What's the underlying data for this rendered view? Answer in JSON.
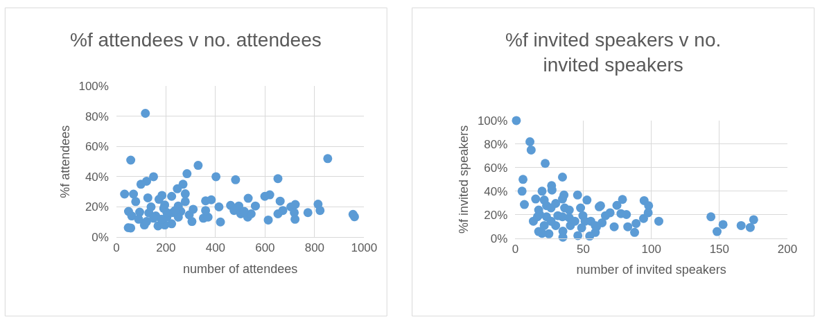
{
  "chart_data": [
    {
      "type": "scatter",
      "title": "%f attendees v no. attendees",
      "xlabel": "number of attendees",
      "ylabel": "%f attendees",
      "marker": "circle",
      "grid": true,
      "xlim": [
        0,
        1000
      ],
      "xticks": [
        0,
        200,
        400,
        600,
        800,
        1000
      ],
      "ylim": [
        0,
        100
      ],
      "yticks": [
        {
          "value": 0,
          "label": "0%"
        },
        {
          "value": 20,
          "label": "20%"
        },
        {
          "value": 40,
          "label": "40%"
        },
        {
          "value": 60,
          "label": "60%"
        },
        {
          "value": 80,
          "label": "80%"
        },
        {
          "value": 100,
          "label": "100%"
        }
      ],
      "series": [
        {
          "color": "#5b9bd5",
          "x": [
            117,
            58,
            853,
            330,
            285,
            402,
            481,
            652,
            150,
            122,
            99,
            269,
            246,
            33,
            69,
            78,
            127,
            184,
            223,
            278,
            278,
            360,
            383,
            414,
            461,
            494,
            532,
            561,
            599,
            619,
            661,
            722,
            704,
            814,
            822,
            773,
            955,
            961,
            613,
            721,
            718,
            652,
            672,
            420,
            305,
            294,
            310,
            351,
            370,
            360,
            475,
            502,
            530,
            544,
            516,
            49,
            62,
            58,
            48,
            113,
            94,
            90,
            131,
            140,
            172,
            195,
            191,
            168,
            195,
            223,
            204,
            182,
            159,
            227,
            250,
            260,
            250,
            237,
            204,
            150,
            122
          ],
          "values": [
            82,
            51,
            52,
            47.5,
            42,
            40,
            38,
            38.7,
            40,
            37,
            35,
            35,
            32,
            28.5,
            28.5,
            23.5,
            26,
            27.6,
            27,
            28.7,
            23.5,
            24,
            24.7,
            20,
            21,
            20.6,
            25.7,
            20.6,
            27,
            28,
            23.8,
            21.6,
            20,
            21.8,
            17.6,
            16.2,
            15,
            13.5,
            11.3,
            11.8,
            16.2,
            15.4,
            17.6,
            10,
            10.3,
            14.7,
            18.4,
            12.5,
            13.2,
            17.6,
            17.6,
            15.4,
            13.2,
            15.4,
            17,
            17,
            14,
            6,
            6.2,
            8,
            16.5,
            11.8,
            16,
            20,
            25,
            21.3,
            19,
            7.4,
            8,
            8.8,
            13.2,
            11.8,
            14,
            16.2,
            20.6,
            17,
            13.2,
            17.6,
            16.2,
            12.5,
            10.3
          ]
        }
      ]
    },
    {
      "type": "scatter",
      "title": "%f invited speakers v no. invited speakers",
      "xlabel": "number of invited speakers",
      "ylabel": "%f invited speakers",
      "marker": "circle",
      "grid": true,
      "xlim": [
        0,
        200
      ],
      "xticks": [
        0,
        50,
        100,
        150,
        200
      ],
      "ylim": [
        0,
        100
      ],
      "yticks": [
        {
          "value": 0,
          "label": "0%"
        },
        {
          "value": 20,
          "label": "20%"
        },
        {
          "value": 40,
          "label": "40%"
        },
        {
          "value": 60,
          "label": "60%"
        },
        {
          "value": 80,
          "label": "80%"
        },
        {
          "value": 100,
          "label": "100%"
        }
      ],
      "series": [
        {
          "color": "#5b9bd5",
          "x": [
            0.8,
            10.8,
            11.7,
            22,
            5.7,
            34.7,
            5,
            6.7,
            15,
            19.7,
            26.7,
            27,
            35.8,
            45.8,
            52.7,
            61.7,
            62.7,
            74.7,
            78.8,
            94.7,
            98,
            97.7,
            94.3,
            81.7,
            77.7,
            69.7,
            66.3,
            63.8,
            59.7,
            58.8,
            54.7,
            72.7,
            82.7,
            88.8,
            87.7,
            105.5,
            143.8,
            148.3,
            152.7,
            166,
            172.7,
            175.2,
            46,
            35,
            35,
            24.7,
            19.7,
            17.2,
            13.3,
            16.3,
            17.2,
            23,
            23,
            21.3,
            26.3,
            29.7,
            31.3,
            36.3,
            39.7,
            39.7,
            40.5,
            29.7,
            21.3,
            26.3,
            34.7,
            43.8,
            48,
            49.7,
            48.8,
            51.3,
            55.5,
            58.8,
            18,
            34.7
          ],
          "values": [
            100,
            82,
            75,
            63.6,
            50,
            52,
            40,
            28.7,
            33.4,
            40,
            44.7,
            41,
            36.8,
            36.8,
            32.5,
            26.8,
            27.7,
            28,
            33,
            32,
            27.7,
            21.7,
            16.8,
            20.2,
            21,
            21.7,
            19.2,
            13.2,
            9.8,
            5,
            1.9,
            9.8,
            9.8,
            12.6,
            5,
            14.5,
            18.3,
            5.7,
            11.7,
            10.8,
            9.2,
            15.8,
            2.3,
            0.9,
            6,
            3.8,
            4.2,
            5.7,
            14.5,
            18.3,
            24,
            18.3,
            27.7,
            32.5,
            25.8,
            29.6,
            19.2,
            25.8,
            24,
            17.4,
            10.8,
            10.8,
            10.8,
            14.5,
            18.3,
            14.5,
            25.8,
            19.2,
            8.9,
            14.5,
            14.5,
            10.8,
            20.2,
            33.4
          ]
        }
      ]
    }
  ]
}
